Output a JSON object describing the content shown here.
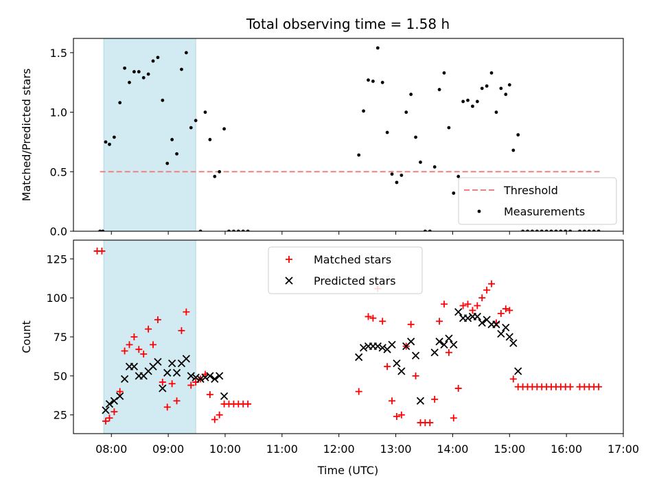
{
  "figure": {
    "title": "Total observing time = 1.58 h",
    "xlabel": "Time (UTC)"
  },
  "chart_data": [
    {
      "type": "scatter",
      "ylabel": "Matched/Predicted stars",
      "xlim": [
        "07:20",
        "17:00"
      ],
      "ylim": [
        0,
        1.62
      ],
      "yticks": [
        "0.0",
        "0.5",
        "1.0",
        "1.5"
      ],
      "xticks": [
        "08:00",
        "09:00",
        "10:00",
        "11:00",
        "12:00",
        "13:00",
        "14:00",
        "15:00",
        "16:00",
        "17:00"
      ],
      "highlight_span": [
        "07:52",
        "09:29"
      ],
      "legend_position": "lower right",
      "series": [
        {
          "name": "Threshold",
          "kind": "dashed-line",
          "color": "#f08080",
          "points": [
            [
              "07:48",
              0.5
            ],
            [
              "16:35",
              0.5
            ]
          ]
        },
        {
          "name": "Measurements",
          "kind": "dots",
          "color": "#000000",
          "points": [
            [
              "07:48",
              0.0
            ],
            [
              "07:51",
              0.0
            ],
            [
              "07:54",
              0.75
            ],
            [
              "07:58",
              0.73
            ],
            [
              "08:03",
              0.79
            ],
            [
              "08:09",
              1.08
            ],
            [
              "08:14",
              1.37
            ],
            [
              "08:19",
              1.25
            ],
            [
              "08:24",
              1.34
            ],
            [
              "08:29",
              1.34
            ],
            [
              "08:34",
              1.29
            ],
            [
              "08:39",
              1.32
            ],
            [
              "08:44",
              1.43
            ],
            [
              "08:49",
              1.46
            ],
            [
              "08:54",
              1.1
            ],
            [
              "08:59",
              0.57
            ],
            [
              "09:04",
              0.77
            ],
            [
              "09:09",
              0.65
            ],
            [
              "09:14",
              1.36
            ],
            [
              "09:19",
              1.5
            ],
            [
              "09:24",
              0.87
            ],
            [
              "09:29",
              0.93
            ],
            [
              "09:34",
              0.0
            ],
            [
              "09:39",
              1.0
            ],
            [
              "09:44",
              0.77
            ],
            [
              "09:49",
              0.46
            ],
            [
              "09:54",
              0.5
            ],
            [
              "09:59",
              0.86
            ],
            [
              "10:04",
              0.0
            ],
            [
              "10:09",
              0.0
            ],
            [
              "10:14",
              0.0
            ],
            [
              "10:19",
              0.0
            ],
            [
              "10:24",
              0.0
            ],
            [
              "12:21",
              0.64
            ],
            [
              "12:26",
              1.01
            ],
            [
              "12:31",
              1.27
            ],
            [
              "12:36",
              1.26
            ],
            [
              "12:41",
              1.54
            ],
            [
              "12:46",
              1.25
            ],
            [
              "12:51",
              0.83
            ],
            [
              "12:56",
              0.48
            ],
            [
              "13:01",
              0.41
            ],
            [
              "13:06",
              0.47
            ],
            [
              "13:11",
              1.0
            ],
            [
              "13:16",
              1.15
            ],
            [
              "13:21",
              0.79
            ],
            [
              "13:26",
              0.58
            ],
            [
              "13:31",
              0.0
            ],
            [
              "13:36",
              0.0
            ],
            [
              "13:41",
              0.54
            ],
            [
              "13:46",
              1.19
            ],
            [
              "13:51",
              1.33
            ],
            [
              "13:56",
              0.87
            ],
            [
              "14:01",
              0.32
            ],
            [
              "14:06",
              0.46
            ],
            [
              "14:11",
              1.09
            ],
            [
              "14:16",
              1.1
            ],
            [
              "14:21",
              1.05
            ],
            [
              "14:26",
              1.09
            ],
            [
              "14:31",
              1.2
            ],
            [
              "14:36",
              1.22
            ],
            [
              "14:41",
              1.33
            ],
            [
              "14:46",
              1.0
            ],
            [
              "14:51",
              1.2
            ],
            [
              "14:56",
              1.15
            ],
            [
              "15:00",
              1.23
            ],
            [
              "15:04",
              0.68
            ],
            [
              "15:09",
              0.81
            ],
            [
              "15:14",
              0.0
            ],
            [
              "15:19",
              0.0
            ],
            [
              "15:24",
              0.0
            ],
            [
              "15:29",
              0.0
            ],
            [
              "15:34",
              0.0
            ],
            [
              "15:39",
              0.0
            ],
            [
              "15:44",
              0.0
            ],
            [
              "15:49",
              0.0
            ],
            [
              "15:54",
              0.0
            ],
            [
              "15:59",
              0.0
            ],
            [
              "16:04",
              0.0
            ],
            [
              "16:14",
              0.0
            ],
            [
              "16:19",
              0.0
            ],
            [
              "16:24",
              0.0
            ],
            [
              "16:29",
              0.0
            ],
            [
              "16:34",
              0.0
            ]
          ]
        }
      ]
    },
    {
      "type": "scatter",
      "ylabel": "Count",
      "xlim": [
        "07:20",
        "17:00"
      ],
      "ylim": [
        13,
        137
      ],
      "yticks": [
        "25",
        "50",
        "75",
        "100",
        "125"
      ],
      "xticks": [
        "08:00",
        "09:00",
        "10:00",
        "11:00",
        "12:00",
        "13:00",
        "14:00",
        "15:00",
        "16:00",
        "17:00"
      ],
      "highlight_span": [
        "07:52",
        "09:29"
      ],
      "legend_position": "upper center",
      "series": [
        {
          "name": "Matched stars",
          "marker": "plus",
          "color": "#ff0000",
          "points": [
            [
              "07:45",
              130
            ],
            [
              "07:50",
              130
            ],
            [
              "07:54",
              21
            ],
            [
              "07:58",
              23
            ],
            [
              "08:03",
              27
            ],
            [
              "08:09",
              40
            ],
            [
              "08:14",
              66
            ],
            [
              "08:19",
              70
            ],
            [
              "08:24",
              75
            ],
            [
              "08:29",
              67
            ],
            [
              "08:34",
              64
            ],
            [
              "08:39",
              80
            ],
            [
              "08:44",
              70
            ],
            [
              "08:49",
              86
            ],
            [
              "08:54",
              46
            ],
            [
              "08:59",
              30
            ],
            [
              "09:04",
              45
            ],
            [
              "09:09",
              34
            ],
            [
              "09:14",
              79
            ],
            [
              "09:19",
              91
            ],
            [
              "09:24",
              44
            ],
            [
              "09:29",
              46
            ],
            [
              "09:34",
              48
            ],
            [
              "09:39",
              51
            ],
            [
              "09:44",
              38
            ],
            [
              "09:49",
              22
            ],
            [
              "09:54",
              25
            ],
            [
              "09:59",
              32
            ],
            [
              "10:04",
              32
            ],
            [
              "10:09",
              32
            ],
            [
              "10:14",
              32
            ],
            [
              "10:19",
              32
            ],
            [
              "10:24",
              32
            ],
            [
              "12:21",
              40
            ],
            [
              "12:31",
              88
            ],
            [
              "12:36",
              87
            ],
            [
              "12:41",
              106
            ],
            [
              "12:46",
              85
            ],
            [
              "12:51",
              56
            ],
            [
              "12:56",
              34
            ],
            [
              "13:01",
              24
            ],
            [
              "13:06",
              25
            ],
            [
              "13:11",
              69
            ],
            [
              "13:16",
              83
            ],
            [
              "13:21",
              50
            ],
            [
              "13:26",
              20
            ],
            [
              "13:31",
              20
            ],
            [
              "13:36",
              20
            ],
            [
              "13:41",
              35
            ],
            [
              "13:46",
              85
            ],
            [
              "13:51",
              96
            ],
            [
              "13:56",
              65
            ],
            [
              "14:01",
              23
            ],
            [
              "14:06",
              42
            ],
            [
              "14:11",
              95
            ],
            [
              "14:16",
              96
            ],
            [
              "14:21",
              92
            ],
            [
              "14:26",
              95
            ],
            [
              "14:31",
              100
            ],
            [
              "14:36",
              105
            ],
            [
              "14:41",
              109
            ],
            [
              "14:46",
              84
            ],
            [
              "14:51",
              90
            ],
            [
              "14:56",
              93
            ],
            [
              "15:00",
              92
            ],
            [
              "15:04",
              48
            ],
            [
              "15:09",
              43
            ],
            [
              "15:14",
              43
            ],
            [
              "15:19",
              43
            ],
            [
              "15:24",
              43
            ],
            [
              "15:29",
              43
            ],
            [
              "15:34",
              43
            ],
            [
              "15:39",
              43
            ],
            [
              "15:44",
              43
            ],
            [
              "15:49",
              43
            ],
            [
              "15:54",
              43
            ],
            [
              "15:59",
              43
            ],
            [
              "16:04",
              43
            ],
            [
              "16:14",
              43
            ],
            [
              "16:19",
              43
            ],
            [
              "16:24",
              43
            ],
            [
              "16:29",
              43
            ],
            [
              "16:34",
              43
            ]
          ]
        },
        {
          "name": "Predicted stars",
          "marker": "cross",
          "color": "#000000",
          "points": [
            [
              "07:54",
              28
            ],
            [
              "07:58",
              32
            ],
            [
              "08:03",
              34
            ],
            [
              "08:09",
              37
            ],
            [
              "08:14",
              48
            ],
            [
              "08:19",
              56
            ],
            [
              "08:24",
              56
            ],
            [
              "08:29",
              50
            ],
            [
              "08:34",
              50
            ],
            [
              "08:39",
              53
            ],
            [
              "08:44",
              56
            ],
            [
              "08:49",
              59
            ],
            [
              "08:54",
              42
            ],
            [
              "08:59",
              52
            ],
            [
              "09:04",
              58
            ],
            [
              "09:09",
              52
            ],
            [
              "09:14",
              58
            ],
            [
              "09:19",
              61
            ],
            [
              "09:24",
              50
            ],
            [
              "09:29",
              49
            ],
            [
              "09:34",
              48
            ],
            [
              "09:39",
              49
            ],
            [
              "09:44",
              50
            ],
            [
              "09:49",
              48
            ],
            [
              "09:54",
              50
            ],
            [
              "09:59",
              37
            ],
            [
              "12:21",
              62
            ],
            [
              "12:26",
              68
            ],
            [
              "12:31",
              69
            ],
            [
              "12:36",
              69
            ],
            [
              "12:41",
              69
            ],
            [
              "12:46",
              68
            ],
            [
              "12:51",
              67
            ],
            [
              "12:56",
              70
            ],
            [
              "13:01",
              58
            ],
            [
              "13:06",
              53
            ],
            [
              "13:11",
              69
            ],
            [
              "13:16",
              72
            ],
            [
              "13:21",
              63
            ],
            [
              "13:26",
              34
            ],
            [
              "13:41",
              65
            ],
            [
              "13:46",
              72
            ],
            [
              "13:51",
              70
            ],
            [
              "13:56",
              74
            ],
            [
              "14:01",
              70
            ],
            [
              "14:06",
              91
            ],
            [
              "14:11",
              87
            ],
            [
              "14:16",
              87
            ],
            [
              "14:21",
              88
            ],
            [
              "14:26",
              88
            ],
            [
              "14:31",
              84
            ],
            [
              "14:36",
              86
            ],
            [
              "14:41",
              83
            ],
            [
              "14:46",
              83
            ],
            [
              "14:51",
              77
            ],
            [
              "14:56",
              81
            ],
            [
              "15:00",
              75
            ],
            [
              "15:04",
              71
            ],
            [
              "15:09",
              53
            ]
          ]
        }
      ]
    }
  ],
  "colors": {
    "span": "#add8e6",
    "axes": "#000000"
  }
}
